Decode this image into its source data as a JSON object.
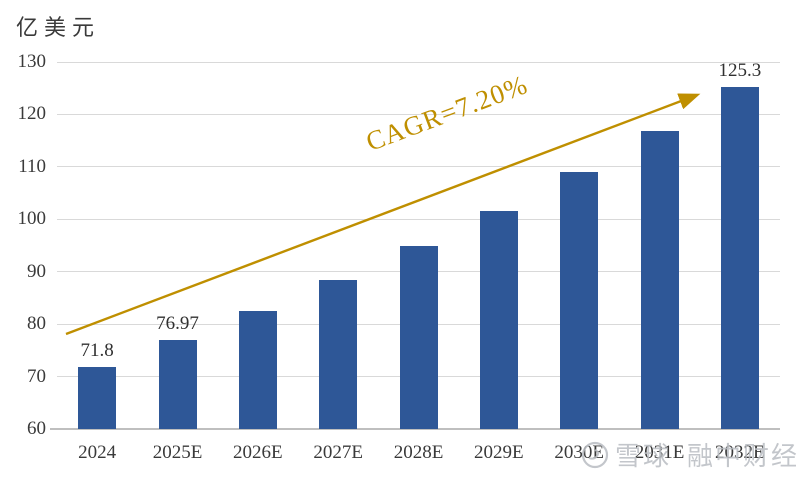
{
  "chart_data": {
    "type": "bar",
    "title": "",
    "xlabel": "",
    "ylabel": "亿美元",
    "categories": [
      "2024",
      "2025E",
      "2026E",
      "2027E",
      "2028E",
      "2029E",
      "2030E",
      "2031E",
      "2032E"
    ],
    "values": [
      71.8,
      76.97,
      82.51,
      88.45,
      94.82,
      101.65,
      108.97,
      116.81,
      125.3
    ],
    "data_labels": [
      "71.8",
      "76.97",
      "",
      "",
      "",
      "",
      "",
      "",
      "125.3"
    ],
    "ylim": [
      60,
      130
    ],
    "ytick_step": 10,
    "grid": true,
    "legend": "none",
    "annotation": {
      "text": "CAGR=7.20%"
    },
    "colors": {
      "bar": "#2E5797",
      "arrow": "#BF8F00",
      "grid": "#D9D9D9",
      "axis": "#BFBFBF",
      "text": "#3A3A3A",
      "watermark": "#B9BDC2"
    }
  },
  "watermark": {
    "logo": "xueqiu-logo",
    "text1": "雪球",
    "text2": "融中财经"
  }
}
